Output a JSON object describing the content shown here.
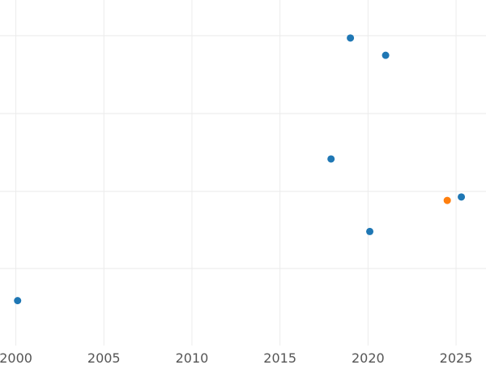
{
  "chart_data": {
    "type": "scatter",
    "title": "",
    "xlabel": "",
    "ylabel": "",
    "x_ticks": [
      2000,
      2005,
      2010,
      2015,
      2020,
      2025
    ],
    "xlim": [
      1999.1,
      2026.7
    ],
    "y_grid_count": 4,
    "ylim": [
      0,
      1
    ],
    "grid": true,
    "series": [
      {
        "color": "#1f77b4",
        "points": [
          {
            "x": 2000.1,
            "y": 0.13
          },
          {
            "x": 2017.9,
            "y": 0.54
          },
          {
            "x": 2019.0,
            "y": 0.89
          },
          {
            "x": 2021.0,
            "y": 0.84
          },
          {
            "x": 2020.1,
            "y": 0.33
          },
          {
            "x": 2025.3,
            "y": 0.43
          }
        ]
      },
      {
        "color": "#ff7f0e",
        "points": [
          {
            "x": 2024.5,
            "y": 0.42
          }
        ]
      }
    ]
  }
}
